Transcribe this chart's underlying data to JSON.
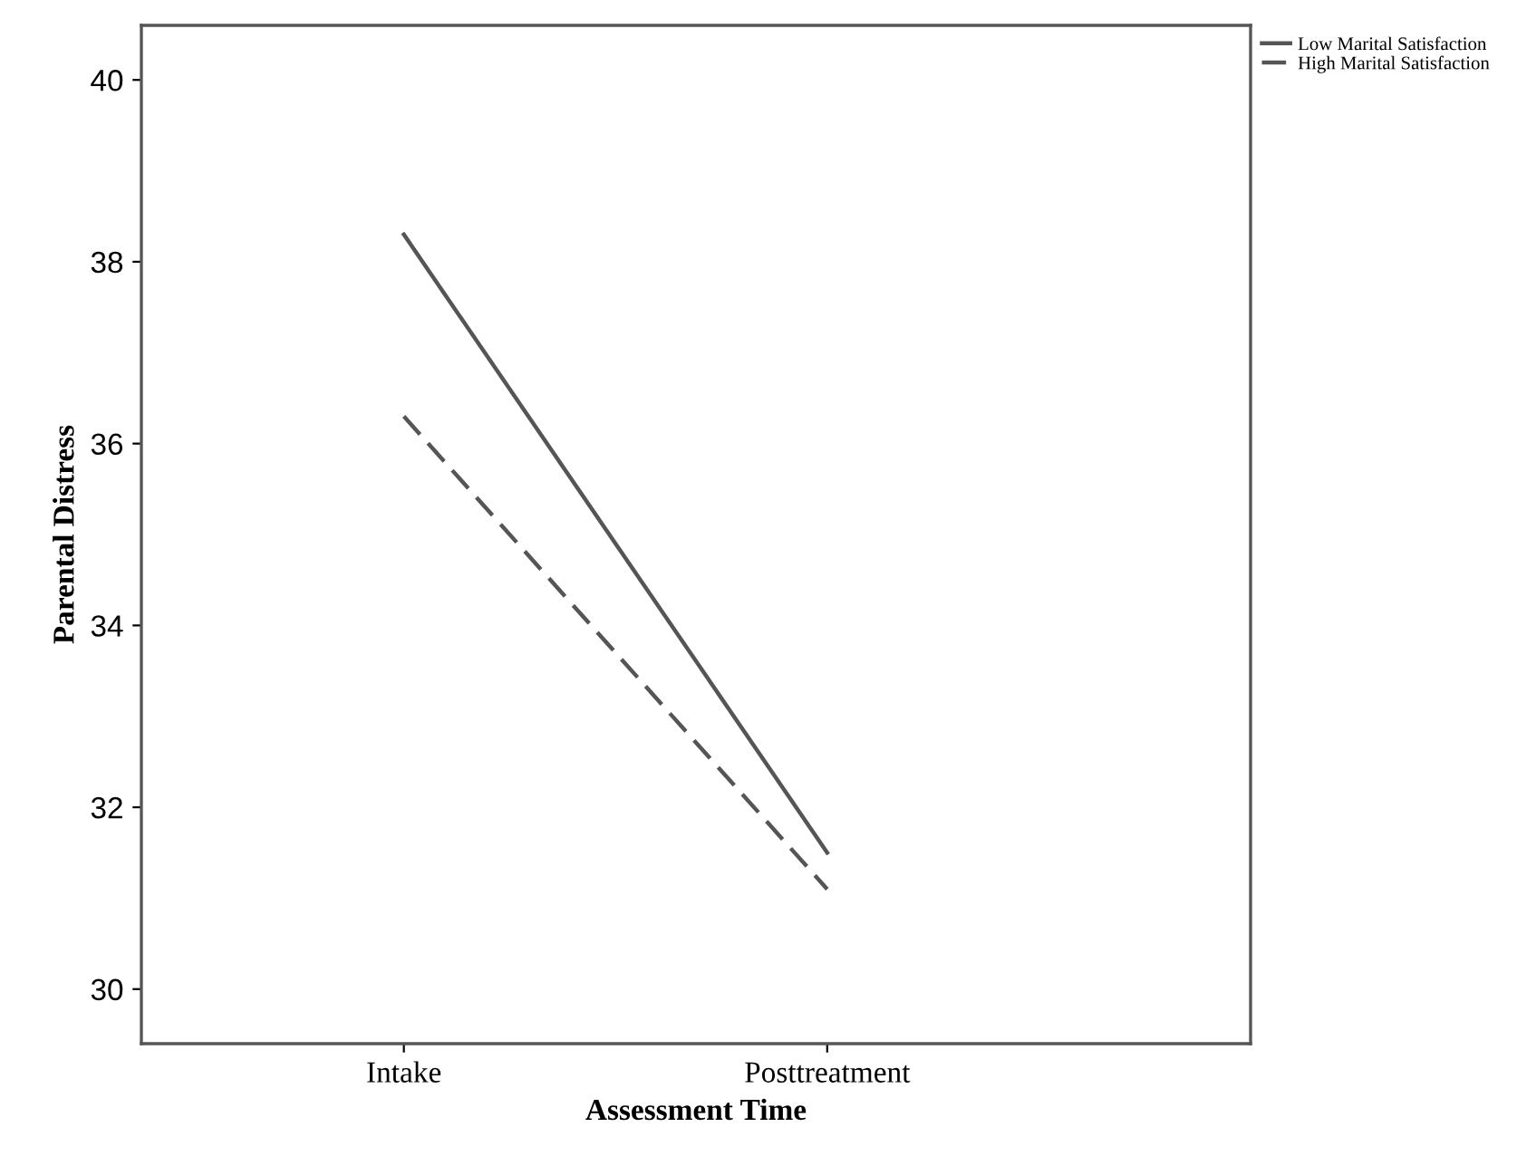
{
  "chart_data": {
    "type": "line",
    "xlabel": "Assessment Time",
    "ylabel": "Parental Distress",
    "categories": [
      "Intake",
      "Posttreatment"
    ],
    "series": [
      {
        "name": "Low Marital Satisfaction",
        "color": "#555555",
        "values": [
          38.3,
          31.5
        ],
        "line_style": "solid"
      },
      {
        "name": "High Marital Satisfaction",
        "color": "#555555",
        "values": [
          36.3,
          31.1
        ],
        "line_style": "dashed"
      }
    ],
    "ylim": [
      29.4,
      40.6
    ],
    "yticks": [
      30,
      32,
      34,
      36,
      38,
      40
    ],
    "grid": false,
    "legend": "top right",
    "marker": "none"
  }
}
